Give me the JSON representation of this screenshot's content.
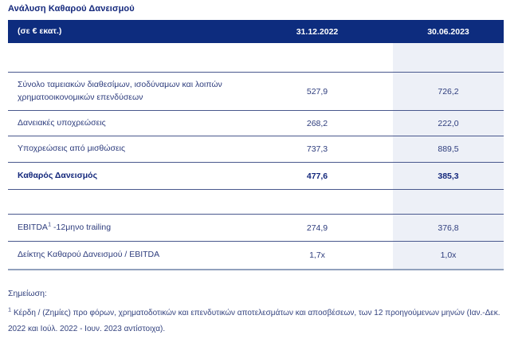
{
  "title": "Ανάλυση Καθαρού Δανεισμού",
  "table": {
    "header": {
      "unit": "(σε € εκατ.)",
      "col_2022": "31.12.2022",
      "col_2023": "30.06.2023"
    },
    "rows": [
      {
        "type": "spacer"
      },
      {
        "label": "Σύνολο ταμειακών διαθεσίμων, ισοδύναμων και λοιπών χρηματοοικονομικών επενδύσεων",
        "v2022": "527,9",
        "v2023": "726,2"
      },
      {
        "label": "Δανειακές υποχρεώσεις",
        "v2022": "268,2",
        "v2023": "222,0"
      },
      {
        "label": "Υποχρεώσεις από μισθώσεις",
        "v2022": "737,3",
        "v2023": "889,5"
      },
      {
        "label": "Καθαρός Δανεισμός",
        "v2022": "477,6",
        "v2023": "385,3",
        "bold": true
      },
      {
        "type": "spacer"
      },
      {
        "label_prefix": "EBITDA",
        "label_sup": "1",
        "label_suffix": " -12μηνο trailing",
        "v2022": "274,9",
        "v2023": "376,8"
      },
      {
        "label": "Δείκτης Καθαρού Δανεισμού / EBITDA",
        "v2022": "1,7x",
        "v2023": "1,0x"
      }
    ]
  },
  "footer": {
    "note_label": "Σημείωση:",
    "footnote_sup": "1",
    "footnote_text": " Κέρδη / (Ζημίες) προ φόρων, χρηματοδοτικών και επενδυτικών αποτελεσμάτων και αποσβέσεων, των 12 προηγούμενων μηνών (Ιαν.-Δεκ. 2022 και Ιούλ. 2022 - Ιουν. 2023 αντίστοιχα)."
  },
  "colors": {
    "header_bg": "#0d2c7e",
    "header_text": "#ffffff",
    "highlight_column_bg": "#edf0f7",
    "row_separator": "#49588d",
    "table_bottom_border": "#91a1bd",
    "body_text": "#2e3d7d",
    "emphasis_text": "#14287c"
  }
}
